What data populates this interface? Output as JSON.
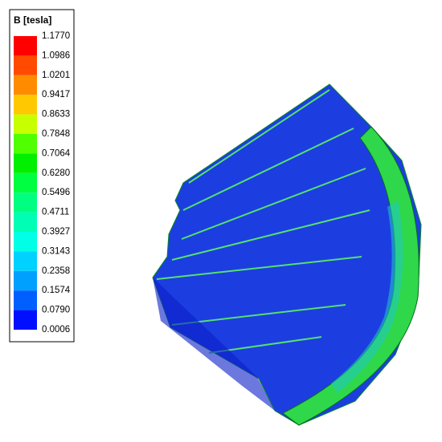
{
  "legend": {
    "title": "B [tesla]",
    "levels": [
      "1.1770",
      "1.0986",
      "1.0201",
      "0.9417",
      "0.8633",
      "0.7848",
      "0.7064",
      "0.6280",
      "0.5496",
      "0.4711",
      "0.3927",
      "0.3143",
      "0.2358",
      "0.1574",
      "0.0790",
      "0.0006"
    ],
    "colors": [
      "#ff0000",
      "#ff4a00",
      "#ff8c00",
      "#ffc800",
      "#c8ff00",
      "#50ff00",
      "#00f000",
      "#00ff40",
      "#00ff80",
      "#00ffb4",
      "#00ffe6",
      "#00d2ff",
      "#00a0ff",
      "#0060ff",
      "#0010ff"
    ]
  }
}
